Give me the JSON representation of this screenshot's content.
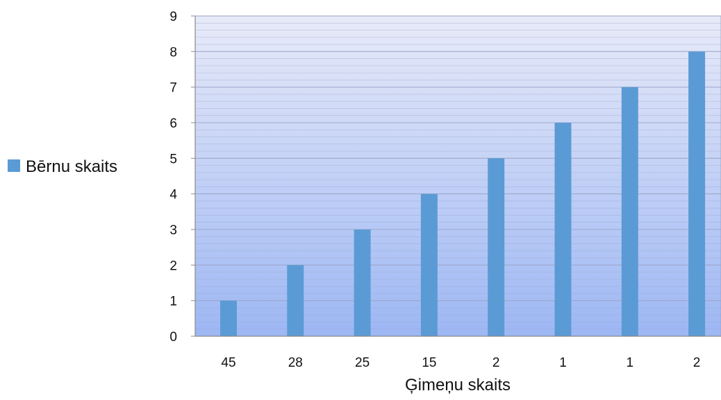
{
  "chart_data": {
    "type": "bar",
    "categories": [
      "45",
      "28",
      "25",
      "15",
      "2",
      "1",
      "1",
      "2"
    ],
    "series": [
      {
        "name": "Bērnu skaits",
        "values": [
          1,
          2,
          3,
          4,
          5,
          6,
          7,
          8
        ],
        "color": "#5B9BD5"
      }
    ],
    "xlabel": "Ģimeņu skaits",
    "ylabel": "",
    "ylim": [
      0,
      9
    ],
    "yticks": [
      "0",
      "1",
      "2",
      "3",
      "4",
      "5",
      "6",
      "7",
      "8",
      "9"
    ],
    "grid": true,
    "legend": "left",
    "plot_background": {
      "top_color": "#E7EAF8",
      "bottom_color": "#9DB7F4",
      "gridline_color": "#9AA3C4"
    }
  }
}
